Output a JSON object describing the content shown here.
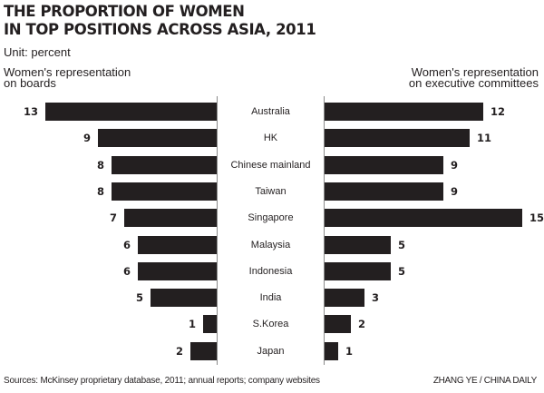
{
  "header": {
    "title_line1": "THE PROPORTION OF WOMEN",
    "title_line2": "IN TOP POSITIONS ACROSS ASIA, 2011",
    "unit": "Unit: percent"
  },
  "legend": {
    "left_line1": "Women's representation",
    "left_line2": "on boards",
    "right_line1": "Women's representation",
    "right_line2": "on executive committees"
  },
  "footer": {
    "source": "Sources: McKinsey proprietary database, 2011; annual reports; company websites",
    "credit": "ZHANG YE / CHINA DAILY"
  },
  "colors": {
    "bar": "#231f20",
    "axis": "#8a8a8a",
    "background": "#ffffff"
  },
  "chart_data": {
    "type": "bar",
    "orientation": "horizontal",
    "layout": "butterfly",
    "title": "THE PROPORTION OF WOMEN IN TOP POSITIONS ACROSS ASIA, 2011",
    "subtitle": "Unit: percent",
    "categories": [
      "Australia",
      "HK",
      "Chinese mainland",
      "Taiwan",
      "Singapore",
      "Malaysia",
      "Indonesia",
      "India",
      "S.Korea",
      "Japan"
    ],
    "series": [
      {
        "name": "Women's representation on boards",
        "side": "left",
        "values": [
          13,
          9,
          8,
          8,
          7,
          6,
          6,
          5,
          1,
          2
        ]
      },
      {
        "name": "Women's representation on executive committees",
        "side": "right",
        "values": [
          12,
          11,
          9,
          9,
          15,
          5,
          5,
          3,
          2,
          1
        ]
      }
    ],
    "xlabel": "",
    "ylabel": "",
    "xlim": [
      0,
      15
    ],
    "grid": false,
    "data_labels": true,
    "source": "Sources: McKinsey proprietary database, 2011; annual reports; company websites",
    "credit": "ZHANG YE / CHINA DAILY"
  }
}
